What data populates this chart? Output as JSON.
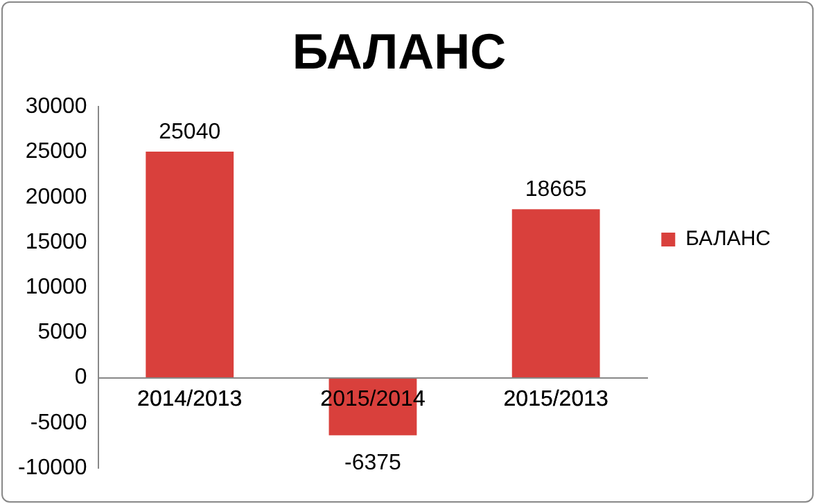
{
  "chart_data": {
    "type": "bar",
    "title": "БАЛАНС",
    "categories": [
      "2014/2013",
      "2015/2014",
      "2015/2013"
    ],
    "series": [
      {
        "name": "БАЛАНС",
        "color": "#d9403c",
        "values": [
          25040,
          -6375,
          18665
        ]
      }
    ],
    "ylim": [
      -10000,
      30000
    ],
    "yticks": [
      -10000,
      -5000,
      0,
      5000,
      10000,
      15000,
      20000,
      25000,
      30000
    ],
    "grid": false,
    "legend": "right",
    "data_labels": true
  }
}
